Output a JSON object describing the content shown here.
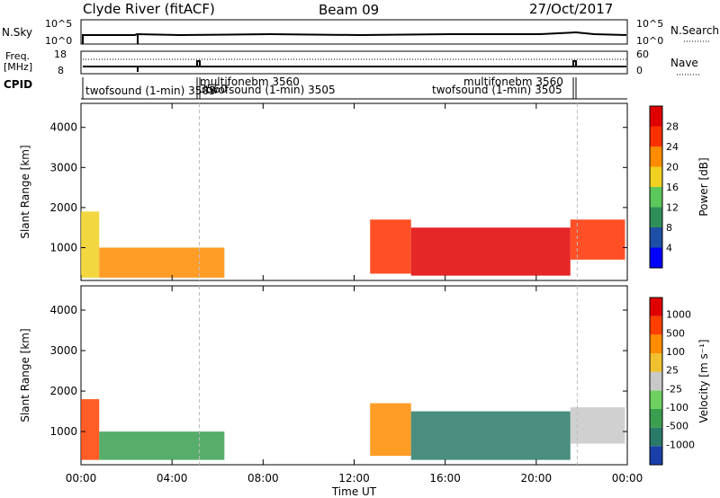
{
  "header": {
    "station": "Clyde River (fitACF)",
    "beam": "Beam 09",
    "date": "27/Oct/2017"
  },
  "top_panels": {
    "nsky": {
      "label": "N.Sky",
      "ticks": [
        "10^5",
        "10^0"
      ]
    },
    "nsearch": {
      "label": "N.Search",
      "ticks": [
        "10^5",
        "10^0"
      ]
    },
    "freq": {
      "label_line1": "Freq.",
      "label_line2": "[MHz]",
      "ticks": [
        "18",
        "8"
      ]
    },
    "nave": {
      "label": "Nave",
      "ticks": [
        "60",
        "0"
      ]
    },
    "cpid": {
      "label": "CPID",
      "entries": [
        {
          "text": "twofsound (1-min) 3505",
          "start_hour": 0.0
        },
        {
          "text": "multifonebm 3560",
          "start_hour": 5.2
        },
        {
          "text": "3560",
          "start_hour": 5.2
        },
        {
          "text": "twofsound (1-min) 3505",
          "start_hour": 5.35
        },
        {
          "text": "multifonebm 3560",
          "start_hour": 21.8
        },
        {
          "text": "twofsound (1-min) 3505",
          "start_hour": 21.8
        }
      ]
    }
  },
  "chart_data": [
    {
      "type": "heatmap",
      "ylabel": "Slant Range [km]",
      "y_ticks": [
        "1000",
        "2000",
        "3000",
        "4000"
      ],
      "ylim": [
        180,
        4600
      ],
      "x_ticks": [
        "00:00",
        "04:00",
        "08:00",
        "12:00",
        "16:00",
        "20:00",
        "00:00"
      ],
      "xlim": [
        0,
        24
      ],
      "colorbar": {
        "label": "Power [dB]",
        "ticks": [
          "4",
          "8",
          "12",
          "16",
          "20",
          "24",
          "28"
        ],
        "colors": [
          "#0000ff",
          "#1e4fa6",
          "#2f8f5a",
          "#5ac85a",
          "#f0d020",
          "#ff8c00",
          "#ff3000",
          "#e00000"
        ]
      },
      "regions": [
        {
          "x0": 0.0,
          "x1": 0.8,
          "y0": 250,
          "y1": 1900,
          "level": 4
        },
        {
          "x0": 0.8,
          "x1": 6.3,
          "y0": 250,
          "y1": 1000,
          "level": 5
        },
        {
          "x0": 12.7,
          "x1": 14.5,
          "y0": 350,
          "y1": 1700,
          "level": 6
        },
        {
          "x0": 14.5,
          "x1": 21.5,
          "y0": 300,
          "y1": 1500,
          "level": 7
        },
        {
          "x0": 21.5,
          "x1": 23.9,
          "y0": 700,
          "y1": 1700,
          "level": 6
        }
      ]
    },
    {
      "type": "heatmap",
      "ylabel": "Slant Range [km]",
      "y_ticks": [
        "1000",
        "2000",
        "3000",
        "4000"
      ],
      "ylim": [
        180,
        4600
      ],
      "x_ticks": [
        "00:00",
        "04:00",
        "08:00",
        "12:00",
        "16:00",
        "20:00",
        "00:00"
      ],
      "xlim": [
        0,
        24
      ],
      "xlabel": "Time UT",
      "colorbar": {
        "label": "Velocity [m s⁻¹]",
        "ticks": [
          "1000",
          "500",
          "100",
          "25",
          "-25",
          "-100",
          "-500",
          "-1000"
        ],
        "colors": [
          "#1a3fa8",
          "#2a7a6a",
          "#3aa050",
          "#6ed060",
          "#c8c8c8",
          "#f0c030",
          "#ff8c00",
          "#ff4000",
          "#e00000"
        ]
      },
      "regions": [
        {
          "x0": 0.0,
          "x1": 0.8,
          "y0": 300,
          "y1": 1800,
          "level": 7
        },
        {
          "x0": 0.8,
          "x1": 6.3,
          "y0": 300,
          "y1": 1000,
          "level": 2
        },
        {
          "x0": 12.7,
          "x1": 14.5,
          "y0": 400,
          "y1": 1700,
          "level": 6
        },
        {
          "x0": 14.5,
          "x1": 21.5,
          "y0": 300,
          "y1": 1500,
          "level": 1
        },
        {
          "x0": 21.5,
          "x1": 23.9,
          "y0": 700,
          "y1": 1600,
          "level": 4
        }
      ]
    }
  ]
}
